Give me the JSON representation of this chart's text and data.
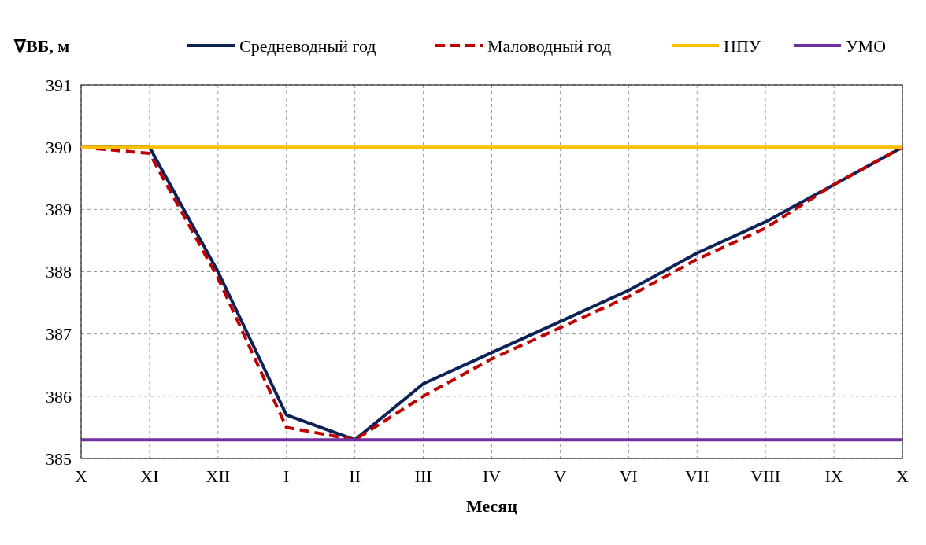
{
  "chart_data": {
    "type": "line",
    "ylabel": "∇ВБ, м",
    "xlabel": "Месяц",
    "categories": [
      "X",
      "XI",
      "XII",
      "I",
      "II",
      "III",
      "IV",
      "V",
      "VI",
      "VII",
      "VIII",
      "IX",
      "X"
    ],
    "series": [
      {
        "name": "Средневодный год",
        "color": "#0d2357",
        "line_style": "solid",
        "values": [
          390,
          390,
          388.0,
          385.7,
          385.3,
          386.2,
          386.7,
          387.2,
          387.7,
          388.3,
          388.8,
          389.4,
          390
        ]
      },
      {
        "name": "Маловодный год",
        "color": "#c00000",
        "line_style": "dashed",
        "values": [
          390,
          389.9,
          387.9,
          385.5,
          385.3,
          386.0,
          386.6,
          387.1,
          387.6,
          388.2,
          388.7,
          389.4,
          390
        ]
      },
      {
        "name": "НПУ",
        "color": "#ffc000",
        "line_style": "solid",
        "values": [
          390,
          390,
          390,
          390,
          390,
          390,
          390,
          390,
          390,
          390,
          390,
          390,
          390
        ]
      },
      {
        "name": "УМО",
        "color": "#7030a0",
        "line_style": "solid",
        "values": [
          385.3,
          385.3,
          385.3,
          385.3,
          385.3,
          385.3,
          385.3,
          385.3,
          385.3,
          385.3,
          385.3,
          385.3,
          385.3
        ]
      }
    ],
    "ylim": [
      385,
      391
    ],
    "yticks": [
      385,
      386,
      387,
      388,
      389,
      390,
      391
    ],
    "grid": true,
    "legend": "top",
    "marker": "none"
  }
}
